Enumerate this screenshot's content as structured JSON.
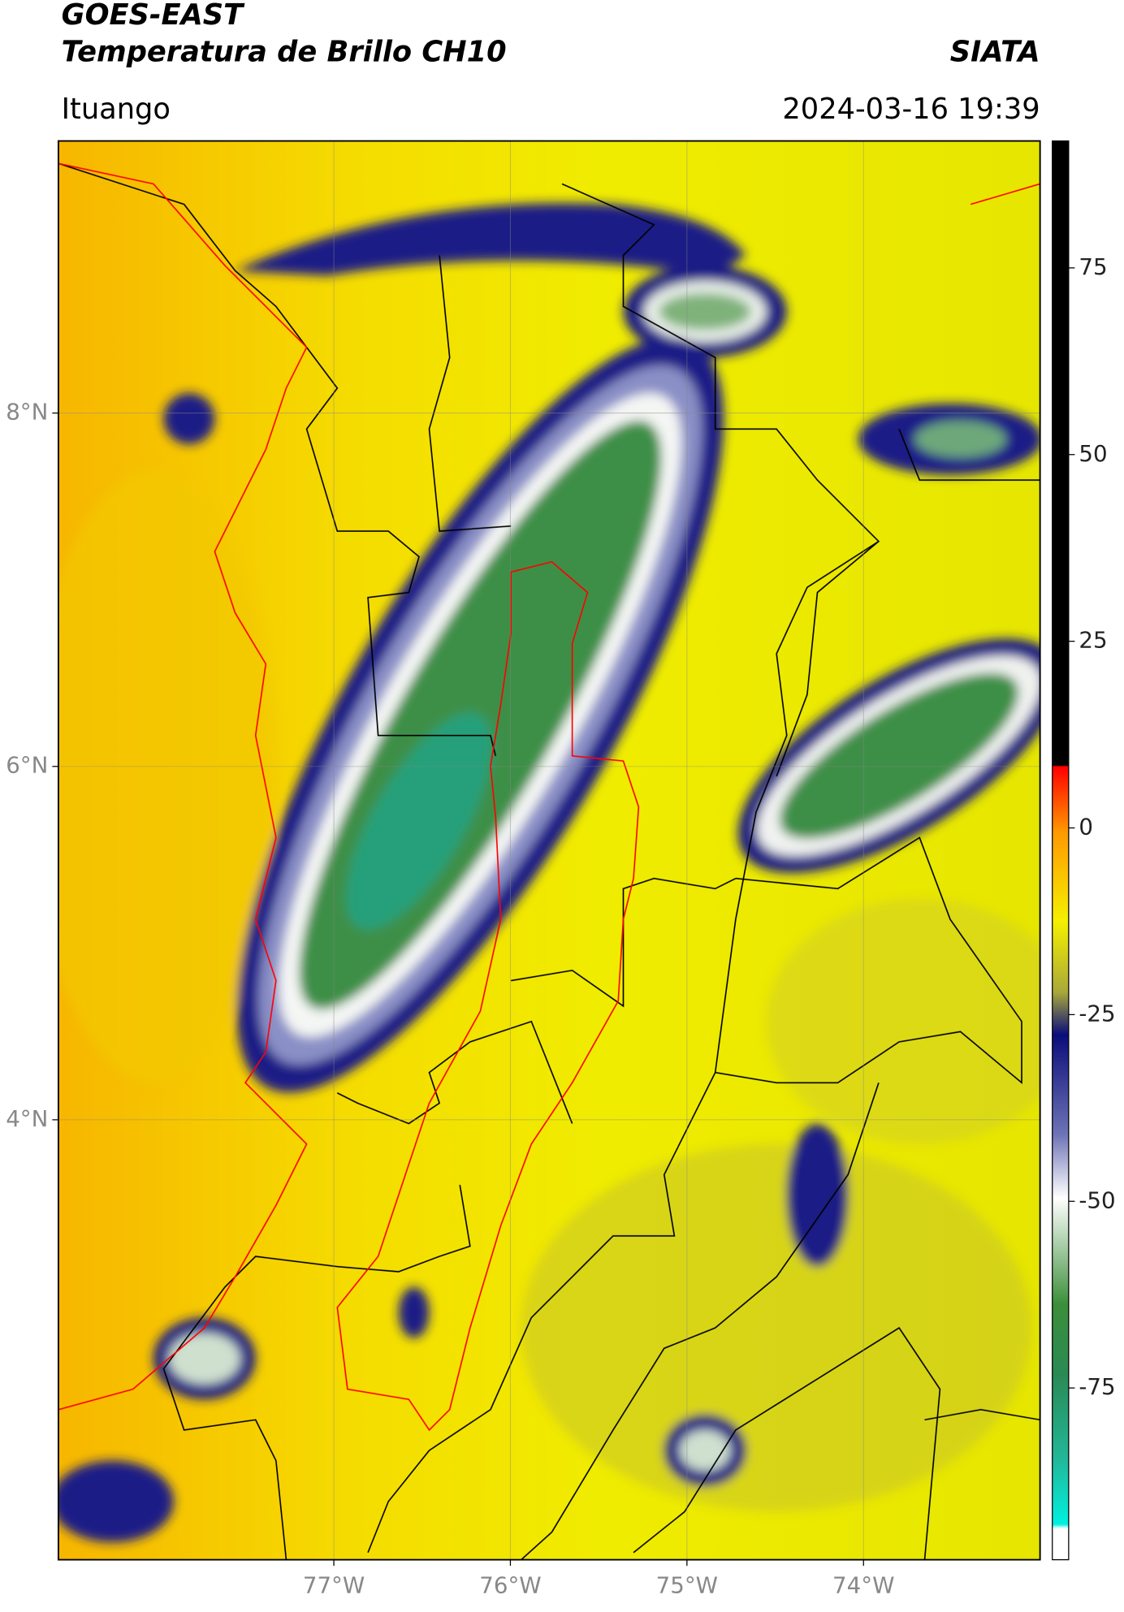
{
  "header": {
    "title": "GOES-EAST",
    "subtitle": "Temperatura de Brillo CH10",
    "brand": "SIATA",
    "location": "Ituango",
    "datetime": "2024-03-16 19:39"
  },
  "map": {
    "xlim": [
      -78.56,
      -73.0
    ],
    "ylim": [
      1.51,
      9.54
    ],
    "xticks": [
      {
        "value": -77,
        "label": "77°W"
      },
      {
        "value": -76,
        "label": "76°W"
      },
      {
        "value": -75,
        "label": "75°W"
      },
      {
        "value": -74,
        "label": "74°W"
      }
    ],
    "yticks": [
      {
        "value": 8,
        "label": "8°N"
      },
      {
        "value": 6,
        "label": "6°N"
      },
      {
        "value": 4,
        "label": "4°N"
      }
    ],
    "grid": true
  },
  "colorbar": {
    "lim": [
      -98,
      92
    ],
    "ticks": [
      75,
      50,
      25,
      0,
      -25,
      -50,
      -75
    ]
  }
}
